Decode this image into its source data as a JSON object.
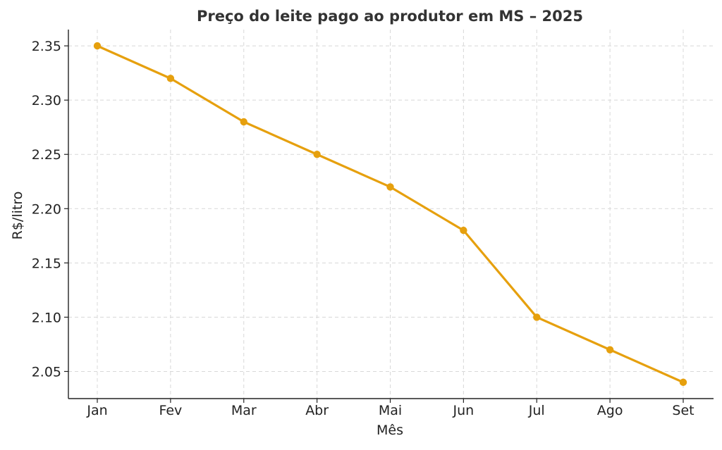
{
  "chart_data": {
    "type": "line",
    "title": "Preço do leite pago ao produtor em MS – 2025",
    "xlabel": "Mês",
    "ylabel": "R$/litro",
    "categories": [
      "Jan",
      "Fev",
      "Mar",
      "Abr",
      "Mai",
      "Jun",
      "Jul",
      "Ago",
      "Set"
    ],
    "series": [
      {
        "values": [
          2.35,
          2.32,
          2.28,
          2.25,
          2.22,
          2.18,
          2.1,
          2.07,
          2.04
        ],
        "color": "#E6A00E"
      }
    ],
    "yticks": [
      "2.05",
      "2.10",
      "2.15",
      "2.20",
      "2.25",
      "2.30",
      "2.35"
    ],
    "ylim": [
      2.025,
      2.365
    ],
    "grid": true,
    "legend": "none"
  }
}
